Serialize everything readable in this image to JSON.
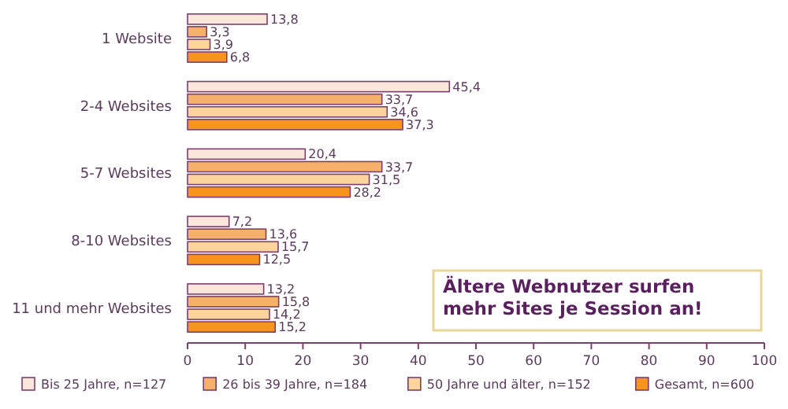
{
  "chart_data": {
    "type": "bar",
    "orientation": "horizontal",
    "categories": [
      "1 Website",
      "2-4 Websites",
      "5-7 Websites",
      "8-10 Websites",
      "11 und mehr Websites"
    ],
    "series": [
      {
        "name": "Bis 25 Jahre, n=127",
        "color": "#fbe6dc",
        "values": [
          13.8,
          45.4,
          20.4,
          7.2,
          13.2
        ],
        "value_labels": [
          "13,8",
          "45,4",
          "20,4",
          "7,2",
          "13,2"
        ]
      },
      {
        "name": "26 bis 39 Jahre, n=184",
        "color": "#f5b06a",
        "values": [
          3.3,
          33.7,
          33.7,
          13.6,
          15.8
        ],
        "value_labels": [
          "3,3",
          "33,7",
          "33,7",
          "13,6",
          "15,8"
        ]
      },
      {
        "name": "50 Jahre und älter, n=152",
        "color": "#fbd59c",
        "values": [
          3.9,
          34.6,
          31.5,
          15.7,
          14.2
        ],
        "value_labels": [
          "3,9",
          "34,6",
          "31,5",
          "15,7",
          "14,2"
        ]
      },
      {
        "name": "Gesamt, n=600",
        "color": "#f7941d",
        "values": [
          6.8,
          37.3,
          28.2,
          12.5,
          15.2
        ],
        "value_labels": [
          "6,8",
          "37,3",
          "28,2",
          "12,5",
          "15,2"
        ]
      }
    ],
    "xlim": [
      0,
      100
    ],
    "xticks": [
      0,
      10,
      20,
      30,
      40,
      50,
      60,
      70,
      80,
      90,
      100
    ],
    "grid": false,
    "legend": "bottom",
    "annotations": [
      "Ältere Webnutzer surfen mehr Sites je Session an!"
    ]
  }
}
